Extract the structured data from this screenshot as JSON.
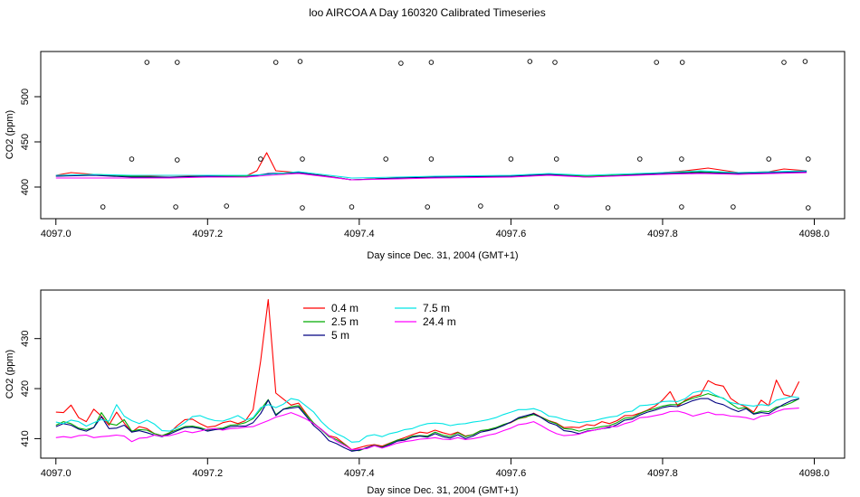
{
  "figure_title": "loo AIRCOA A  Day 160320  Calibrated Timeseries",
  "chart_data": [
    {
      "type": "line",
      "xlabel": "Day since Dec. 31, 2004 (GMT+1)",
      "ylabel": "CO2 (ppm)",
      "xlim": [
        4096.98,
        4098.04
      ],
      "ylim": [
        365,
        550
      ],
      "xticks": [
        4097.0,
        4097.2,
        4097.4,
        4097.6,
        4097.8,
        4098.0
      ],
      "xtick_labels": [
        "4097.0",
        "4097.2",
        "4097.4",
        "4097.6",
        "4097.8",
        "4098.0"
      ],
      "yticks": [
        400,
        450,
        500
      ],
      "ytick_labels": [
        "400",
        "450",
        "500"
      ],
      "grid": false,
      "series": [
        {
          "color": "#ff0000",
          "x": [
            4097.0,
            4097.02,
            4097.05,
            4097.1,
            4097.15,
            4097.2,
            4097.25,
            4097.265,
            4097.278,
            4097.29,
            4097.32,
            4097.35,
            4097.39,
            4097.45,
            4097.5,
            4097.55,
            4097.6,
            4097.65,
            4097.7,
            4097.75,
            4097.8,
            4097.83,
            4097.86,
            4097.9,
            4097.94,
            4097.96,
            4097.99
          ],
          "y": [
            413,
            416,
            414,
            412,
            413,
            412,
            412,
            418,
            438,
            418,
            416,
            413,
            408,
            410,
            411,
            412,
            412,
            414,
            412,
            413,
            416,
            418,
            421,
            416,
            417,
            420,
            418
          ]
        },
        {
          "color": "#00aa00",
          "x": [
            4097.0,
            4097.05,
            4097.1,
            4097.15,
            4097.2,
            4097.25,
            4097.28,
            4097.32,
            4097.39,
            4097.45,
            4097.5,
            4097.6,
            4097.65,
            4097.7,
            4097.8,
            4097.85,
            4097.9,
            4097.99
          ],
          "y": [
            412,
            414,
            412,
            411,
            412,
            412,
            414,
            416,
            408,
            410,
            411,
            412,
            414,
            412,
            415,
            417,
            415,
            417
          ]
        },
        {
          "color": "#000080",
          "x": [
            4097.0,
            4097.05,
            4097.1,
            4097.15,
            4097.2,
            4097.25,
            4097.28,
            4097.32,
            4097.39,
            4097.45,
            4097.5,
            4097.6,
            4097.65,
            4097.7,
            4097.8,
            4097.85,
            4097.9,
            4097.99
          ],
          "y": [
            412,
            413,
            411,
            411,
            412,
            411,
            415,
            416,
            408,
            410,
            411,
            412,
            414,
            411,
            415,
            416,
            415,
            417
          ]
        },
        {
          "color": "#00e5e5",
          "x": [
            4097.0,
            4097.05,
            4097.1,
            4097.15,
            4097.2,
            4097.25,
            4097.28,
            4097.32,
            4097.39,
            4097.45,
            4097.5,
            4097.6,
            4097.65,
            4097.7,
            4097.8,
            4097.85,
            4097.9,
            4097.99
          ],
          "y": [
            413,
            414,
            413,
            413,
            413,
            413,
            414,
            417,
            410,
            411,
            412,
            413,
            415,
            413,
            416,
            418,
            416,
            418
          ]
        },
        {
          "color": "#ff00ff",
          "x": [
            4097.0,
            4097.05,
            4097.1,
            4097.15,
            4097.2,
            4097.25,
            4097.28,
            4097.32,
            4097.39,
            4097.45,
            4097.5,
            4097.6,
            4097.65,
            4097.7,
            4097.8,
            4097.85,
            4097.9,
            4097.99
          ],
          "y": [
            410,
            410,
            410,
            410,
            411,
            411,
            413,
            415,
            408,
            409,
            410,
            411,
            413,
            411,
            414,
            415,
            414,
            416
          ]
        }
      ],
      "markers": {
        "symbol": "open-circle",
        "x": [
          4097.12,
          4097.16,
          4097.29,
          4097.322,
          4097.455,
          4097.495,
          4097.625,
          4097.658,
          4097.792,
          4097.826,
          4097.96,
          4097.988,
          4097.1,
          4097.16,
          4097.27,
          4097.325,
          4097.435,
          4097.495,
          4097.6,
          4097.66,
          4097.77,
          4097.825,
          4097.94,
          4097.992,
          4097.062,
          4097.158,
          4097.225,
          4097.325,
          4097.39,
          4097.49,
          4097.56,
          4097.66,
          4097.728,
          4097.825,
          4097.893,
          4097.992
        ],
        "y": [
          538,
          538,
          538,
          539,
          537,
          538,
          539,
          538,
          538,
          538,
          538,
          539,
          431,
          430,
          431,
          431,
          431,
          431,
          431,
          431,
          431,
          431,
          431,
          431,
          378,
          378,
          379,
          377,
          378,
          378,
          379,
          378,
          377,
          378,
          378,
          377
        ]
      }
    },
    {
      "type": "line",
      "xlabel": "Day since Dec. 31, 2004 (GMT+1)",
      "ylabel": "CO2 (ppm)",
      "xlim": [
        4096.98,
        4098.04
      ],
      "ylim": [
        406.1,
        439.7
      ],
      "xticks": [
        4097.0,
        4097.2,
        4097.4,
        4097.6,
        4097.8,
        4098.0
      ],
      "xtick_labels": [
        "4097.0",
        "4097.2",
        "4097.4",
        "4097.6",
        "4097.8",
        "4098.0"
      ],
      "yticks": [
        410,
        420,
        430
      ],
      "ytick_labels": [
        "410",
        "420",
        "430"
      ],
      "grid": false,
      "legend": "top-left",
      "x": [
        4097.0,
        4097.01,
        4097.02,
        4097.03,
        4097.04,
        4097.05,
        4097.06,
        4097.07,
        4097.08,
        4097.09,
        4097.1,
        4097.11,
        4097.12,
        4097.13,
        4097.14,
        4097.15,
        4097.16,
        4097.17,
        4097.18,
        4097.19,
        4097.2,
        4097.21,
        4097.22,
        4097.23,
        4097.24,
        4097.25,
        4097.26,
        4097.27,
        4097.28,
        4097.29,
        4097.3,
        4097.31,
        4097.32,
        4097.33,
        4097.34,
        4097.35,
        4097.36,
        4097.37,
        4097.38,
        4097.39,
        4097.4,
        4097.41,
        4097.42,
        4097.43,
        4097.44,
        4097.45,
        4097.46,
        4097.47,
        4097.48,
        4097.49,
        4097.5,
        4097.51,
        4097.52,
        4097.53,
        4097.54,
        4097.55,
        4097.56,
        4097.57,
        4097.58,
        4097.59,
        4097.6,
        4097.61,
        4097.62,
        4097.63,
        4097.64,
        4097.65,
        4097.66,
        4097.67,
        4097.68,
        4097.69,
        4097.7,
        4097.71,
        4097.72,
        4097.73,
        4097.74,
        4097.75,
        4097.76,
        4097.77,
        4097.78,
        4097.79,
        4097.8,
        4097.81,
        4097.82,
        4097.83,
        4097.84,
        4097.85,
        4097.86,
        4097.87,
        4097.88,
        4097.89,
        4097.9,
        4097.91,
        4097.92,
        4097.93,
        4097.94,
        4097.95,
        4097.96,
        4097.97,
        4097.98
      ],
      "series": [
        {
          "name": "0.4 m",
          "color": "#ff0000",
          "values": [
            415.3,
            415.2,
            416.7,
            414.2,
            413.4,
            415.9,
            414.5,
            412.7,
            415.3,
            413.1,
            411.3,
            412.4,
            412.0,
            411.0,
            410.6,
            411.1,
            412.6,
            413.8,
            413.9,
            413.0,
            412.3,
            412.5,
            413.2,
            413.5,
            413.0,
            413.6,
            415.8,
            425.5,
            437.8,
            419.1,
            417.9,
            416.7,
            417.1,
            415.0,
            413.0,
            411.8,
            410.6,
            410.2,
            409.0,
            407.8,
            408.2,
            408.6,
            408.8,
            408.5,
            409.1,
            409.7,
            410.2,
            410.8,
            411.3,
            411.1,
            411.7,
            411.2,
            410.8,
            411.3,
            410.5,
            410.8,
            411.6,
            411.7,
            412.0,
            412.8,
            413.2,
            414.0,
            414.3,
            415.1,
            414.3,
            413.6,
            413.1,
            412.2,
            412.3,
            412.2,
            412.8,
            412.6,
            413.4,
            413.0,
            413.6,
            414.6,
            414.6,
            415.1,
            415.7,
            416.5,
            417.7,
            419.4,
            416.5,
            417.7,
            418.4,
            418.8,
            421.6,
            420.8,
            420.5,
            418.0,
            417.0,
            416.3,
            415.3,
            417.7,
            416.6,
            421.7,
            418.8,
            418.4,
            421.4
          ]
        },
        {
          "name": "2.5 m",
          "color": "#00aa00",
          "values": [
            412.7,
            413.4,
            413.0,
            412.1,
            411.8,
            412.2,
            415.2,
            413.0,
            412.7,
            413.8,
            411.5,
            411.8,
            411.7,
            411.0,
            410.6,
            411.2,
            411.8,
            412.4,
            412.5,
            412.2,
            411.7,
            412.0,
            412.1,
            412.7,
            412.8,
            413.2,
            414.0,
            415.8,
            417.8,
            414.8,
            415.9,
            416.4,
            416.6,
            414.8,
            413.1,
            411.8,
            410.4,
            409.8,
            408.9,
            407.7,
            407.6,
            408.2,
            408.7,
            408.3,
            409.0,
            409.7,
            409.9,
            410.5,
            410.6,
            410.5,
            411.3,
            410.7,
            410.4,
            411.2,
            410.4,
            410.8,
            411.6,
            411.8,
            412.2,
            412.8,
            413.3,
            414.0,
            414.4,
            414.8,
            414.3,
            413.5,
            413.0,
            412.0,
            411.9,
            411.5,
            411.9,
            412.1,
            412.4,
            412.6,
            413.2,
            414.1,
            414.2,
            415.0,
            415.6,
            416.0,
            416.5,
            416.8,
            416.8,
            417.5,
            418.1,
            418.5,
            419.0,
            418.5,
            418.1,
            417.0,
            416.0,
            416.2,
            415.0,
            415.5,
            415.4,
            416.3,
            416.6,
            417.2,
            418.0
          ]
        },
        {
          "name": "5 m",
          "color": "#000080",
          "values": [
            412.4,
            413.0,
            412.7,
            411.9,
            411.5,
            412.2,
            414.4,
            412.0,
            412.1,
            412.7,
            411.3,
            411.6,
            411.2,
            410.7,
            410.4,
            410.9,
            411.6,
            412.2,
            412.3,
            412.0,
            411.5,
            411.8,
            411.9,
            412.4,
            412.5,
            412.5,
            413.2,
            415.0,
            417.7,
            414.6,
            415.9,
            416.1,
            416.3,
            414.5,
            412.6,
            411.3,
            409.6,
            409.0,
            408.2,
            407.5,
            407.7,
            408.2,
            408.6,
            408.2,
            408.8,
            409.5,
            409.7,
            410.3,
            410.5,
            410.3,
            411.0,
            410.4,
            410.1,
            410.8,
            410.0,
            410.5,
            411.3,
            411.6,
            412.0,
            412.6,
            413.3,
            414.2,
            414.6,
            415.0,
            414.2,
            413.2,
            412.7,
            411.6,
            411.4,
            411.0,
            411.5,
            411.7,
            412.0,
            412.2,
            412.8,
            413.7,
            413.9,
            414.7,
            415.3,
            415.7,
            416.2,
            416.5,
            416.4,
            417.0,
            417.6,
            418.0,
            418.0,
            417.2,
            416.8,
            416.0,
            415.4,
            416.0,
            414.9,
            415.2,
            415.0,
            416.0,
            416.9,
            417.6,
            418.0
          ]
        },
        {
          "name": "7.5 m",
          "color": "#00e5e5",
          "values": [
            413.3,
            413.0,
            413.7,
            413.4,
            412.5,
            413.2,
            413.8,
            413.5,
            416.8,
            414.5,
            413.6,
            413.0,
            413.7,
            412.9,
            411.6,
            411.5,
            412.2,
            413.2,
            414.4,
            414.6,
            414.0,
            413.6,
            413.5,
            414.0,
            414.6,
            413.7,
            414.2,
            416.2,
            416.8,
            416.2,
            416.9,
            418.0,
            417.7,
            416.5,
            415.3,
            413.4,
            412.0,
            411.0,
            410.3,
            409.3,
            409.4,
            410.5,
            410.8,
            410.4,
            411.0,
            411.3,
            411.8,
            412.0,
            412.6,
            413.0,
            413.1,
            413.0,
            412.6,
            412.9,
            413.0,
            413.3,
            413.5,
            413.8,
            414.2,
            414.8,
            415.3,
            415.8,
            415.8,
            416.0,
            415.5,
            414.5,
            414.3,
            413.8,
            413.5,
            413.2,
            413.4,
            413.6,
            414.0,
            414.3,
            414.5,
            415.3,
            415.5,
            416.6,
            416.7,
            416.9,
            417.4,
            417.5,
            417.4,
            418.0,
            419.2,
            419.5,
            419.6,
            418.7,
            418.0,
            417.2,
            416.9,
            416.7,
            416.5,
            416.8,
            416.6,
            417.7,
            418.0,
            418.4,
            418.2
          ]
        },
        {
          "name": "24.4 m",
          "color": "#ff00ff",
          "values": [
            410.2,
            410.4,
            410.2,
            410.6,
            410.7,
            410.2,
            410.4,
            410.5,
            410.7,
            410.5,
            409.4,
            410.1,
            410.2,
            410.7,
            410.5,
            410.6,
            411.0,
            411.5,
            411.2,
            411.5,
            411.9,
            412.0,
            411.7,
            412.0,
            412.1,
            412.3,
            412.4,
            413.0,
            413.6,
            414.3,
            414.7,
            415.2,
            414.6,
            413.9,
            413.0,
            411.9,
            410.6,
            409.5,
            408.7,
            407.8,
            407.9,
            408.0,
            408.6,
            408.1,
            408.6,
            409.1,
            409.4,
            409.6,
            409.9,
            410.0,
            410.2,
            409.9,
            409.8,
            410.2,
            409.8,
            410.0,
            410.3,
            410.7,
            411.0,
            411.6,
            412.1,
            412.8,
            413.0,
            413.4,
            412.6,
            411.7,
            411.0,
            410.6,
            410.7,
            410.9,
            411.4,
            411.7,
            412.0,
            412.4,
            412.4,
            413.0,
            413.4,
            414.2,
            414.3,
            414.6,
            414.9,
            415.4,
            415.5,
            415.1,
            414.5,
            414.9,
            415.3,
            414.8,
            414.8,
            414.5,
            414.4,
            414.2,
            413.8,
            414.5,
            414.7,
            415.4,
            415.9,
            416.0,
            416.1
          ]
        }
      ]
    }
  ]
}
